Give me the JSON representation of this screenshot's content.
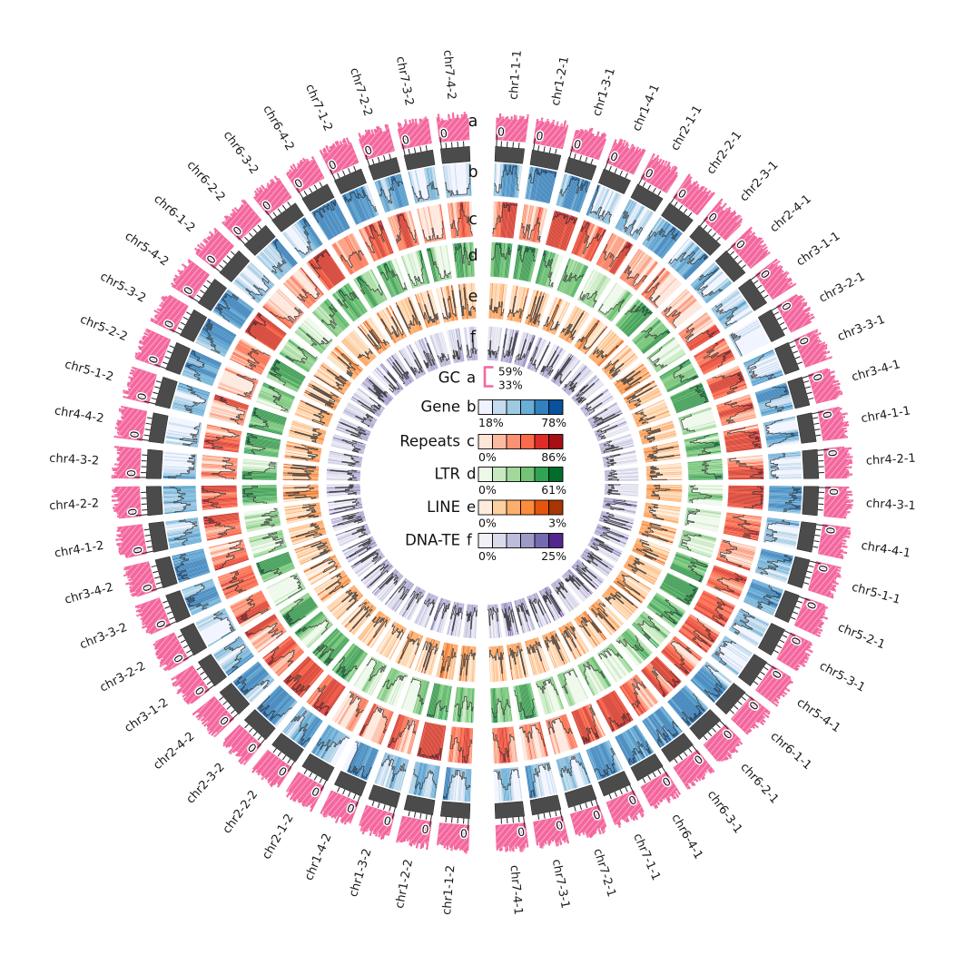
{
  "chart_data": {
    "type": "circos",
    "description": "Circular genome plot: 56 chromosome segments (haplotypes 1 and 2, chr1-chr7 each split in 4) with six concentric annotation tracks (a-f) and a central legend.",
    "axis_tick_label": "0",
    "seed": 1234,
    "segments": [
      "chr1-1-1",
      "chr1-2-1",
      "chr1-3-1",
      "chr1-4-1",
      "chr2-1-1",
      "chr2-2-1",
      "chr2-3-1",
      "chr2-4-1",
      "chr3-1-1",
      "chr3-2-1",
      "chr3-3-1",
      "chr3-4-1",
      "chr4-1-1",
      "chr4-2-1",
      "chr4-3-1",
      "chr4-4-1",
      "chr5-1-1",
      "chr5-2-1",
      "chr5-3-1",
      "chr5-4-1",
      "chr6-1-1",
      "chr6-2-1",
      "chr6-3-1",
      "chr6-4-1",
      "chr7-1-1",
      "chr7-2-1",
      "chr7-3-1",
      "chr7-4-1",
      "chr1-1-2",
      "chr1-2-2",
      "chr1-3-2",
      "chr1-4-2",
      "chr2-1-2",
      "chr2-2-2",
      "chr2-3-2",
      "chr2-4-2",
      "chr3-1-2",
      "chr3-2-2",
      "chr3-3-2",
      "chr3-4-2",
      "chr4-1-2",
      "chr4-2-2",
      "chr4-3-2",
      "chr4-4-2",
      "chr5-1-2",
      "chr5-2-2",
      "chr5-3-2",
      "chr5-4-2",
      "chr6-1-2",
      "chr6-2-2",
      "chr6-3-2",
      "chr6-4-2",
      "chr7-1-2",
      "chr7-2-2",
      "chr7-3-2",
      "chr7-4-2"
    ],
    "tracks": [
      {
        "letter": "a",
        "name": "GC",
        "style": "bars",
        "color": "#f4679e",
        "legend": {
          "type": "bracket",
          "top": "59%",
          "bottom": "33%"
        }
      },
      {
        "letter": "b",
        "name": "Gene",
        "style": "histogram-heatmap",
        "noise": "walk",
        "palette": [
          "#eff3ff",
          "#c6dbef",
          "#9ecae1",
          "#6baed6",
          "#3182bd",
          "#08519c"
        ],
        "legend": {
          "type": "colorbar",
          "min": "18%",
          "max": "78%"
        }
      },
      {
        "letter": "c",
        "name": "Repeats",
        "style": "histogram-heatmap",
        "noise": "walk",
        "palette": [
          "#fee5d9",
          "#fcbba1",
          "#fc9272",
          "#fb6a4a",
          "#de2d26",
          "#a50f15"
        ],
        "legend": {
          "type": "colorbar",
          "min": "0%",
          "max": "86%"
        }
      },
      {
        "letter": "d",
        "name": "LTR",
        "style": "histogram-heatmap",
        "noise": "walk",
        "palette": [
          "#edf8e9",
          "#c7e9c0",
          "#a1d99b",
          "#74c476",
          "#31a354",
          "#006d2c"
        ],
        "legend": {
          "type": "colorbar",
          "min": "0%",
          "max": "61%"
        }
      },
      {
        "letter": "e",
        "name": "LINE",
        "style": "histogram-heatmap",
        "noise": "spike",
        "palette": [
          "#feedde",
          "#fdd0a2",
          "#fdae6b",
          "#fd8d3c",
          "#e6550d",
          "#a63603"
        ],
        "legend": {
          "type": "colorbar",
          "min": "0%",
          "max": "3%"
        }
      },
      {
        "letter": "f",
        "name": "DNA-TE",
        "style": "histogram-heatmap",
        "noise": "spike",
        "palette": [
          "#f2f0f7",
          "#dadaeb",
          "#bcbddc",
          "#9e9ac8",
          "#756bb1",
          "#54278f"
        ],
        "legend": {
          "type": "colorbar",
          "min": "0%",
          "max": "25%"
        }
      }
    ],
    "colors": {
      "axis_ring": "#4b4b4b",
      "data_line": "#3a3a3a",
      "label_text": "#1a1a1a",
      "background": "#ffffff"
    }
  }
}
